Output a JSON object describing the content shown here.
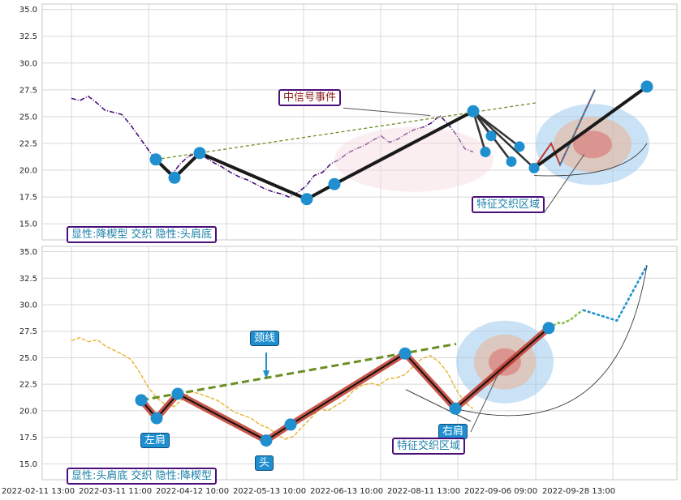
{
  "colors": {
    "accent": "#1f8fcf",
    "band_dark": "#1a1a1a",
    "band_red": "#c0392b",
    "trend": "#6b8e23",
    "price_top": "#4b0f7a",
    "price_bottom": "#e6b32e"
  },
  "x_ticks": [
    "2022-02-11 13:00",
    "2022-03-11 11:00",
    "2022-04-12 10:00",
    "2022-05-13 10:00",
    "2022-06-13 10:00",
    "2022-08-11 13:00",
    "2022-09-06 09:00",
    "2022-09-28 13:00"
  ],
  "top_panel": {
    "annotations": {
      "signal_event": "中信号事件",
      "feature_zone": "特征交织区域",
      "pattern_label": "显性:降楔型 交织 隐性:头肩底"
    },
    "y_ticks": [
      "35.0",
      "32.5",
      "30.0",
      "27.5",
      "25.0",
      "22.5",
      "20.0",
      "17.5",
      "15.0"
    ]
  },
  "bottom_panel": {
    "annotations": {
      "neckline": "颈线",
      "left_shoulder": "左肩",
      "head": "头",
      "right_shoulder": "右肩",
      "feature_zone": "特征交织区域",
      "pattern_label": "显性:头肩底 交织 隐性:降楔型"
    },
    "y_ticks": [
      "35.0",
      "32.5",
      "30.0",
      "27.5",
      "25.0",
      "22.5",
      "20.0",
      "17.5",
      "15.0"
    ]
  },
  "chart_data": [
    {
      "type": "line",
      "title": "",
      "xlabel": "",
      "ylabel": "",
      "ylim": [
        13.5,
        35.5
      ],
      "grid": true,
      "series": [
        {
          "values": [
            26.7,
            26.5,
            26.9,
            26.3,
            25.6,
            25.4,
            25.2,
            24.3,
            23.2,
            22.1,
            21.0,
            20.2,
            19.6,
            20.6,
            21.3,
            21.6,
            21.2,
            20.7,
            20.3,
            19.8,
            19.4,
            19.1,
            18.7,
            18.3,
            18.0,
            17.8,
            17.5,
            17.9,
            18.5,
            19.5,
            19.8,
            20.6,
            21.0,
            21.6,
            22.0,
            22.3,
            22.8,
            23.2,
            22.6,
            22.9,
            23.4,
            23.8,
            24.0,
            24.4,
            25.1,
            24.3,
            23.3,
            22.0,
            21.7
          ]
        },
        {
          "points": [
            21.0,
            19.3,
            21.6,
            17.3,
            18.7,
            25.5,
            21.7,
            23.2,
            20.8,
            22.2,
            20.2,
            27.8
          ]
        }
      ],
      "trendline": [
        21.0,
        26.3
      ]
    },
    {
      "type": "line",
      "title": "",
      "xlabel": "",
      "ylabel": "",
      "ylim": [
        13.5,
        35.5
      ],
      "grid": true,
      "series": [
        {
          "values": [
            26.6,
            26.9,
            26.5,
            26.7,
            26.1,
            25.7,
            25.3,
            24.8,
            23.6,
            22.2,
            21.2,
            20.6,
            20.4,
            21.1,
            21.8,
            21.6,
            21.3,
            21.0,
            20.5,
            19.9,
            19.6,
            19.3,
            18.7,
            18.4,
            17.8,
            17.3,
            17.6,
            18.5,
            19.3,
            20.2,
            20.0,
            20.5,
            21.0,
            21.9,
            22.4,
            22.6,
            22.4,
            23.0,
            23.1,
            23.4,
            24.2,
            24.9,
            25.2,
            24.6,
            23.6,
            22.0,
            20.8,
            20.2
          ]
        },
        {
          "points": [
            21.0,
            19.3,
            21.6,
            17.2,
            18.7,
            25.4,
            20.2,
            27.8
          ]
        }
      ],
      "trendline": [
        21.0,
        26.3
      ],
      "projection": [
        27.8,
        28.3,
        28.2,
        28.6,
        29.5,
        28.5,
        33.7
      ]
    }
  ]
}
